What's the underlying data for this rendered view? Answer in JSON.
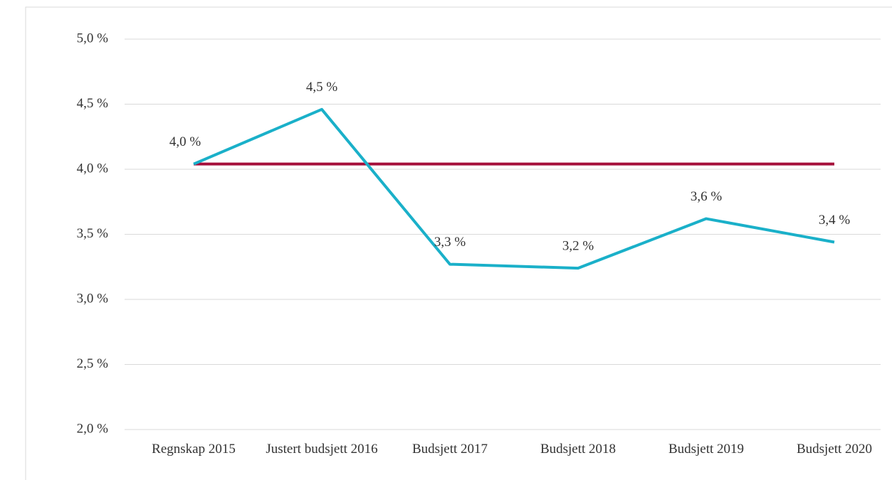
{
  "chart_data": {
    "type": "line",
    "categories": [
      "Regnskap 2015",
      "Justert budsjett 2016",
      "Budsjett 2017",
      "Budsjett 2018",
      "Budsjett 2019",
      "Budsjett 2020"
    ],
    "series": [
      {
        "color": "#a50e3a",
        "values": [
          4.04,
          4.04,
          4.04,
          4.04,
          4.04,
          4.04
        ]
      },
      {
        "color": "#1ab0c9",
        "values": [
          4.04,
          4.46,
          3.27,
          3.24,
          3.62,
          3.44
        ],
        "value_labels": [
          "4,0 %",
          "4,5 %",
          "3,3 %",
          "3,2 %",
          "3,6 %",
          "3,4 %"
        ]
      }
    ],
    "ylim": [
      2.0,
      5.0
    ],
    "yticks": [
      {
        "value": 2.0,
        "label": "2,0 %"
      },
      {
        "value": 2.5,
        "label": "2,5 %"
      },
      {
        "value": 3.0,
        "label": "3,0 %"
      },
      {
        "value": 3.5,
        "label": "3,5 %"
      },
      {
        "value": 4.0,
        "label": "4,0 %"
      },
      {
        "value": 4.5,
        "label": "4,5 %"
      },
      {
        "value": 5.0,
        "label": "5,0 %"
      }
    ],
    "grid": true
  }
}
